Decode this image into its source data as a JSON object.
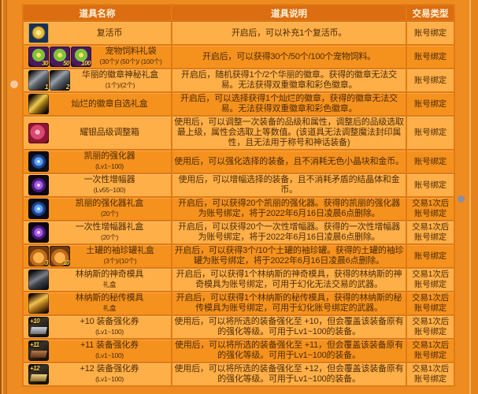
{
  "colors": {
    "page_bg": "#EE8C22",
    "edge_dark": "#A8570E",
    "edge_gold": "#EDA53F",
    "edge_mid": "#D67A1C",
    "right_line": "#FCAF56",
    "right_edge": "#E5831A",
    "header_bg": "#DC6D10",
    "header_text": "#FFF3DC",
    "row_light": "#FFAF48",
    "row_dark": "#F5921E",
    "border": "#E17A14",
    "cell_text": "#4D2B05",
    "dot_left": "#F4C9A0",
    "dot_right": "#8C8F9F"
  },
  "header": {
    "item_name": "道具名称",
    "item_desc": "道具说明",
    "trade_type": "交易类型"
  },
  "table": {
    "rows": [
      {
        "name": "复活币",
        "sub": "",
        "icons": [
          {
            "name": "revival-coin-icon",
            "style": "coin"
          }
        ],
        "desc": "开启后，可以补充1个复活币。",
        "trade": "账号绑定"
      },
      {
        "name": "宠物饲料礼袋",
        "sub": "(30个)/ (50个)/ (100个)",
        "icons": [
          {
            "name": "pet-feed-bag-icon",
            "style": "feed",
            "count": "30"
          },
          {
            "name": "pet-feed-bag-icon",
            "style": "feed",
            "count": "50"
          },
          {
            "name": "pet-feed-bag-icon",
            "style": "feed",
            "count": "100"
          }
        ],
        "desc": "开启后，可以获得30个/50个/100个宠物饲料。",
        "trade": "账号绑定"
      },
      {
        "name": "华丽的徽章神秘礼盒",
        "sub": "(1个)/(2个)",
        "icons": [
          {
            "name": "gorgeous-emblem-box-icon",
            "style": "emblem",
            "count": "1"
          },
          {
            "name": "gorgeous-emblem-box-icon",
            "style": "emblem",
            "count": "2"
          }
        ],
        "desc": "开启后，随机获得1个/2个华丽的徽章。获得的徽章无法交易。无法获得双重徽章和彩色徽章。",
        "trade": "账号绑定"
      },
      {
        "name": "灿烂的徽章自选礼盒",
        "sub": "",
        "icons": [
          {
            "name": "brilliant-emblem-box-icon",
            "style": "emblemgold"
          }
        ],
        "desc": "开启后，可以选择获得1个灿烂的徽章，获得的徽章无法交易。无法获得双重徽章和彩色徽章。",
        "trade": "账号绑定"
      },
      {
        "name": "耀银品级调整箱",
        "sub": "",
        "icons": [
          {
            "name": "grade-adjustment-box-icon",
            "style": "adjust"
          }
        ],
        "desc": "使用后，可以调整一次装备的品级和属性，调整后的品级选取最上级，属性会选取上等数值。(该道具无法调整魔法封印属性，且无法用于称号和神话装备)",
        "trade": "账号绑定"
      },
      {
        "name": "凯丽的强化器",
        "sub": "(Lv1~100)",
        "icons": [
          {
            "name": "kaili-reinforcer-icon",
            "style": "gemblue"
          }
        ],
        "desc": "使用后，可以强化选择的装备，且不消耗无色小晶块和金币。",
        "trade": "账号绑定"
      },
      {
        "name": "一次性增幅器",
        "sub": "(Lv55~100)",
        "icons": [
          {
            "name": "one-time-amplifier-icon",
            "style": "gempurple"
          }
        ],
        "desc": "使用后，可以增幅选择的装备，且不消耗矛盾的结晶体和金币。",
        "trade": "账号绑定"
      },
      {
        "name": "凯丽的强化器礼盒",
        "sub": "(20个)",
        "icons": [
          {
            "name": "kaili-reinforcer-box-icon",
            "style": "gemblue"
          }
        ],
        "desc": "开启后，可以获得20个凯丽的强化器。获得的凯丽的强化器为账号绑定，将于2022年6月16日凌晨6点删除。",
        "trade": "交易1次后\n账号绑定"
      },
      {
        "name": "一次性增幅器礼盒",
        "sub": "(20个)",
        "icons": [
          {
            "name": "one-time-amplifier-box-icon",
            "style": "gempurple"
          }
        ],
        "desc": "开启后，可以获得20个一次性增幅器。获得的一次性增幅器为账号绑定，将于2022年6月16日凌晨6点删除。",
        "trade": "交易1次后\n账号绑定"
      },
      {
        "name": "土罐的袖珍罐礼盒",
        "sub": "(3个)/(10个)",
        "icons": [
          {
            "name": "clay-pot-icon",
            "style": "jar",
            "count": "3"
          },
          {
            "name": "clay-pot-icon",
            "style": "jar",
            "count": "10"
          }
        ],
        "desc": "开启后，可以获得3个/10个土罐的袖珍罐。获得的土罐的袖珍罐为账号绑定，将于2022年6月16日凌晨6点删除。",
        "trade": "账号绑定"
      },
      {
        "name": "林纳斯的神奇模具",
        "sub": "礼盒",
        "icons": [
          {
            "name": "magic-mold-icon",
            "style": "molddark"
          }
        ],
        "desc": "开启后，可以获得1个林纳斯的神奇模具，获得的林纳斯的神奇模具为账号绑定，可用于幻化无法交易的武器。",
        "trade": "交易1次后\n账号绑定"
      },
      {
        "name": "林纳斯的秘传模具",
        "sub": "礼盒",
        "icons": [
          {
            "name": "secret-mold-icon",
            "style": "moldgold"
          }
        ],
        "desc": "开启后，可以获得1个林纳斯的秘传模具，获得的林纳斯的秘传模具为账号绑定，可用于幻化账号绑定的武器。",
        "trade": "交易1次后\n账号绑定"
      },
      {
        "name": "+10 装备强化券",
        "sub": "(Lv1~100)",
        "icons": [
          {
            "name": "plus10-ticket-icon",
            "style": "ticket silver",
            "count": "+10"
          }
        ],
        "desc": "使用后，可以将所选的装备强化至 +10，但会覆盖该装备原有的强化等级。可用于Lv1~100的装备。",
        "trade": "交易1次后\n账号绑定"
      },
      {
        "name": "+11 装备强化券",
        "sub": "(Lv1~100)",
        "icons": [
          {
            "name": "plus11-ticket-icon",
            "style": "ticket bronze",
            "count": "+11"
          }
        ],
        "desc": "使用后，可以将所选的装备强化至 +11，但会覆盖该装备原有的强化等级。可用于Lv1~100的装备。",
        "trade": "交易1次后\n账号绑定"
      },
      {
        "name": "+12 装备强化券",
        "sub": "(Lv1~100)",
        "icons": [
          {
            "name": "plus12-ticket-icon",
            "style": "ticket gold",
            "count": "+12"
          }
        ],
        "desc": "使用后，可以将所选的装备强化至 +12，但会覆盖该装备原有的强化等级。可用于Lv1~100的装备。",
        "trade": "交易1次后\n账号绑定"
      }
    ]
  }
}
